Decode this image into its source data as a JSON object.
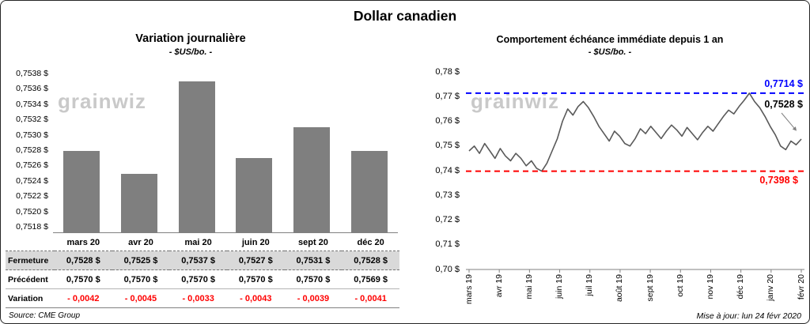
{
  "title": "Dollar canadien",
  "watermark": "grainwiz",
  "colors": {
    "accent_blue": "#0000FF",
    "alert_red": "#FF0000",
    "bar_gray": "#7F7F7F",
    "line_gray": "#595959",
    "highlight_row_gray": "#D9D9D9"
  },
  "chart_data": [
    {
      "type": "bar",
      "title": "Variation journalière",
      "subtitle": "- $US/bo. -",
      "categories": [
        "mars 20",
        "avr 20",
        "mai 20",
        "juin 20",
        "sept 20",
        "déc 20"
      ],
      "values": [
        0.7528,
        0.7525,
        0.7537,
        0.7527,
        0.7531,
        0.7528
      ],
      "ylim": [
        0.7518,
        0.7538
      ],
      "ytick_step": 0.0002,
      "y_tick_labels": [
        "0,7518 $",
        "0,7520 $",
        "0,7522 $",
        "0,7524 $",
        "0,7526 $",
        "0,7528 $",
        "0,7530 $",
        "0,7532 $",
        "0,7534 $",
        "0,7536 $",
        "0,7538 $"
      ],
      "grid": false,
      "legend": false
    },
    {
      "type": "line",
      "title": "Comportement échéance immédiate depuis 1 an",
      "subtitle": "- $US/bo. -",
      "x_tick_labels": [
        "mars 19",
        "avr 19",
        "mai 19",
        "juin 19",
        "juil 19",
        "août 19",
        "sept 19",
        "oct 19",
        "nov 19",
        "déc 19",
        "janv 20",
        "févr 20"
      ],
      "ylim": [
        0.7,
        0.78
      ],
      "ytick_step": 0.01,
      "y_tick_labels": [
        "0,78 $",
        "0,77 $",
        "0,76 $",
        "0,75 $",
        "0,74 $",
        "0,73 $",
        "0,72 $",
        "0,71 $",
        "0,70 $"
      ],
      "high_line": {
        "value": 0.7714,
        "label": "0,7714 $",
        "color": "#0000FF",
        "style": "dashed"
      },
      "low_line": {
        "value": 0.7398,
        "label": "0,7398 $",
        "color": "#FF0000",
        "style": "dashed"
      },
      "last_point": {
        "value": 0.7528,
        "label": "0,7528 $"
      },
      "series": [
        {
          "name": "échéance immédiate",
          "values": [
            0.748,
            0.75,
            0.747,
            0.751,
            0.748,
            0.745,
            0.749,
            0.746,
            0.744,
            0.747,
            0.745,
            0.742,
            0.744,
            0.741,
            0.7398,
            0.743,
            0.748,
            0.753,
            0.76,
            0.765,
            0.7625,
            0.766,
            0.768,
            0.7655,
            0.762,
            0.758,
            0.755,
            0.752,
            0.756,
            0.754,
            0.751,
            0.75,
            0.753,
            0.757,
            0.755,
            0.758,
            0.7555,
            0.753,
            0.756,
            0.7585,
            0.7565,
            0.754,
            0.7575,
            0.755,
            0.7525,
            0.7555,
            0.758,
            0.756,
            0.759,
            0.762,
            0.7645,
            0.763,
            0.766,
            0.7685,
            0.7714,
            0.768,
            0.7655,
            0.762,
            0.758,
            0.7545,
            0.75,
            0.7485,
            0.752,
            0.7505,
            0.7528
          ]
        }
      ],
      "grid": false,
      "legend": false
    }
  ],
  "table": {
    "rows": [
      {
        "label": "Fermeture",
        "style": "highlight",
        "values": [
          "0,7528 $",
          "0,7525 $",
          "0,7537 $",
          "0,7527 $",
          "0,7531 $",
          "0,7528 $"
        ]
      },
      {
        "label": "Précédent",
        "style": "normal",
        "values": [
          "0,7570 $",
          "0,7570 $",
          "0,7570 $",
          "0,7570 $",
          "0,7570 $",
          "0,7569 $"
        ]
      },
      {
        "label": "Variation",
        "style": "negative",
        "values": [
          "- 0,0042",
          "- 0,0045",
          "- 0,0033",
          "- 0,0043",
          "- 0,0039",
          "- 0,0041"
        ]
      }
    ]
  },
  "footer": {
    "source": "Source: CME Group",
    "updated": "Mise à jour: lun 24 févr 2020"
  }
}
